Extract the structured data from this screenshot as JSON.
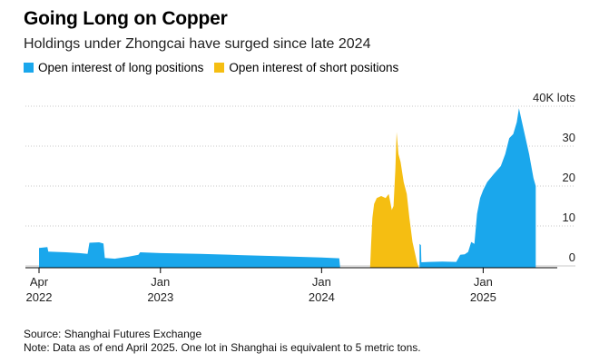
{
  "header": {
    "title": "Going Long on Copper",
    "subtitle": "Holdings under Zhongcai have surged since late 2024"
  },
  "footer": {
    "source": "Source: Shanghai Futures Exchange",
    "note": "Note: Data as of end April 2025. One lot in Shanghai is equivalent to 5 metric tons."
  },
  "chart_data": {
    "type": "area",
    "title": "Going Long on Copper",
    "subtitle": "Holdings under Zhongcai have surged since late 2024",
    "ylabel": "",
    "y_unit": "40K lots",
    "ylim": [
      -2,
      40
    ],
    "y_ticks": [
      {
        "value": 40,
        "label": "40K lots"
      },
      {
        "value": 30,
        "label": "30"
      },
      {
        "value": 20,
        "label": "20"
      },
      {
        "value": 10,
        "label": "10"
      },
      {
        "value": 0,
        "label": "0"
      }
    ],
    "xlim": [
      "2022-04-01",
      "2025-05-20"
    ],
    "x_ticks": [
      {
        "date": "2022-04-01",
        "line1": "Apr",
        "line2": "2022"
      },
      {
        "date": "2023-01-01",
        "line1": "Jan",
        "line2": "2023"
      },
      {
        "date": "2024-01-01",
        "line1": "Jan",
        "line2": "2024"
      },
      {
        "date": "2025-01-01",
        "line1": "Jan",
        "line2": "2025"
      }
    ],
    "grid": true,
    "legend": "top-left",
    "series": [
      {
        "name": "Open interest of long positions",
        "color": "#1aa7ec",
        "points": [
          [
            "2022-04-01",
            0
          ],
          [
            "2022-04-01",
            4.5
          ],
          [
            "2022-04-20",
            4.7
          ],
          [
            "2022-04-22",
            3.6
          ],
          [
            "2022-06-01",
            3.4
          ],
          [
            "2022-07-01",
            3.2
          ],
          [
            "2022-07-20",
            3.0
          ],
          [
            "2022-07-24",
            5.8
          ],
          [
            "2022-08-15",
            5.9
          ],
          [
            "2022-08-25",
            5.6
          ],
          [
            "2022-08-28",
            2.0
          ],
          [
            "2022-09-20",
            1.8
          ],
          [
            "2022-10-20",
            2.3
          ],
          [
            "2022-11-12",
            2.8
          ],
          [
            "2022-11-16",
            3.4
          ],
          [
            "2023-01-01",
            3.2
          ],
          [
            "2023-04-01",
            3.0
          ],
          [
            "2023-07-01",
            2.7
          ],
          [
            "2023-10-01",
            2.4
          ],
          [
            "2024-01-01",
            2.1
          ],
          [
            "2024-02-10",
            1.9
          ],
          [
            "2024-02-12",
            0
          ],
          [
            "2024-08-10",
            0
          ],
          [
            "2024-08-10",
            5.5
          ],
          [
            "2024-08-13",
            5.2
          ],
          [
            "2024-08-14",
            0.9
          ],
          [
            "2024-09-01",
            1.0
          ],
          [
            "2024-10-01",
            1.1
          ],
          [
            "2024-11-01",
            1.0
          ],
          [
            "2024-11-10",
            2.8
          ],
          [
            "2024-11-20",
            2.9
          ],
          [
            "2024-11-28",
            3.5
          ],
          [
            "2024-12-05",
            6.0
          ],
          [
            "2024-12-12",
            5.5
          ],
          [
            "2024-12-18",
            13.0
          ],
          [
            "2024-12-25",
            17.0
          ],
          [
            "2025-01-01",
            19.0
          ],
          [
            "2025-01-10",
            21.0
          ],
          [
            "2025-01-25",
            23.0
          ],
          [
            "2025-02-10",
            25.0
          ],
          [
            "2025-02-20",
            28.0
          ],
          [
            "2025-03-01",
            32.0
          ],
          [
            "2025-03-10",
            33.0
          ],
          [
            "2025-03-18",
            36.0
          ],
          [
            "2025-03-23",
            39.5
          ],
          [
            "2025-03-28",
            37.0
          ],
          [
            "2025-04-05",
            33.0
          ],
          [
            "2025-04-15",
            28.0
          ],
          [
            "2025-04-25",
            22.0
          ],
          [
            "2025-04-30",
            20.0
          ],
          [
            "2025-04-30",
            0
          ]
        ]
      },
      {
        "name": "Open interest of short positions",
        "color": "#f5be12",
        "points": [
          [
            "2024-04-20",
            0
          ],
          [
            "2024-04-22",
            5.0
          ],
          [
            "2024-04-25",
            12.0
          ],
          [
            "2024-04-29",
            15.5
          ],
          [
            "2024-05-05",
            17.0
          ],
          [
            "2024-05-15",
            17.5
          ],
          [
            "2024-05-25",
            17.0
          ],
          [
            "2024-06-01",
            18.0
          ],
          [
            "2024-06-08",
            14.0
          ],
          [
            "2024-06-12",
            15.0
          ],
          [
            "2024-06-16",
            24.0
          ],
          [
            "2024-06-19",
            33.5
          ],
          [
            "2024-06-23",
            28.0
          ],
          [
            "2024-06-28",
            26.0
          ],
          [
            "2024-07-05",
            21.0
          ],
          [
            "2024-07-12",
            18.0
          ],
          [
            "2024-07-18",
            12.0
          ],
          [
            "2024-07-25",
            6.0
          ],
          [
            "2024-08-04",
            1.0
          ],
          [
            "2024-08-08",
            0
          ]
        ]
      }
    ]
  }
}
